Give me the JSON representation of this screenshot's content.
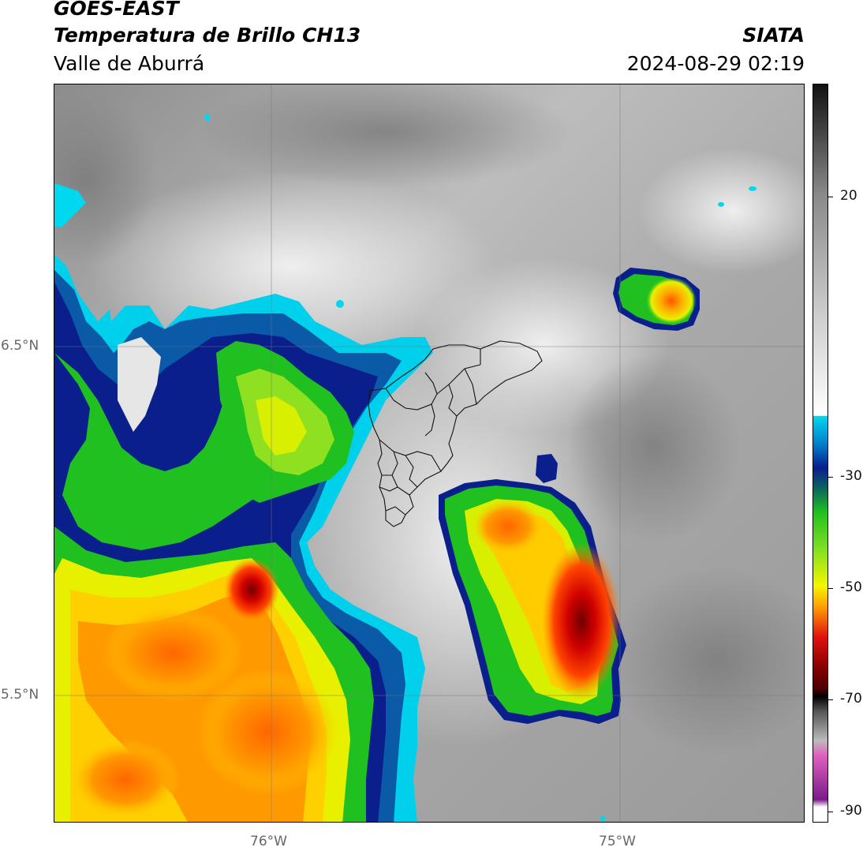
{
  "header": {
    "satellite": "GOES-EAST",
    "product": "Temperatura de Brillo CH13",
    "region": "Valle de Aburrá",
    "agency": "SIATA",
    "datetime": "2024-08-29 02:19"
  },
  "axes": {
    "lat_ticks": [
      "6.5°N",
      "5.5°N"
    ],
    "lon_ticks": [
      "76°W",
      "75°W"
    ]
  },
  "colorbar": {
    "ticks": [
      "20",
      "-30",
      "-50",
      "-70",
      "-90"
    ],
    "colors": {
      "warm_light": "#ffffff",
      "warm_dark": "#111111",
      "cyan": "#00d8f0",
      "dark_blue": "#0a1e8c",
      "green": "#20c020",
      "yellow": "#f5f500",
      "orange": "#ff9900",
      "red": "#e01010",
      "dark_red": "#4a0000",
      "magenta": "#e060c0",
      "purple": "#7a1a8a"
    }
  }
}
